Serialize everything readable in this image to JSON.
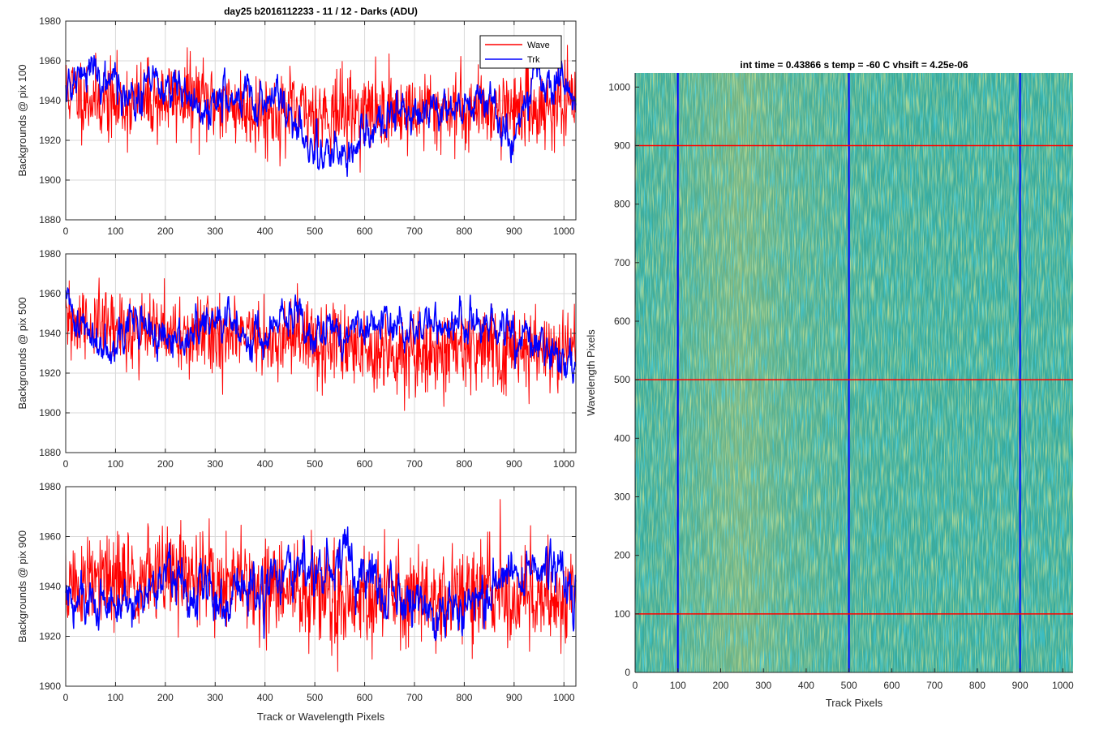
{
  "figure": {
    "left_title": "day25 b2016112233 - 11 / 12 - Darks (ADU)",
    "right_title": "int time = 0.43866 s    temp = -60 C    vhsift = 4.25e-06"
  },
  "legend": {
    "wave_label": "Wave",
    "trk_label": "Trk",
    "placement": "top-right"
  },
  "colors": {
    "wave": "#ff0000",
    "trk": "#0000ff",
    "image_base": "#2fa9a0",
    "image_warm": "#c8c060"
  },
  "chart_data": [
    {
      "type": "line",
      "ylabel": "Backgrounds @ pix 100",
      "xlabel": "",
      "xlim": [
        0,
        1024
      ],
      "ylim": [
        1880,
        1980
      ],
      "xticks": [
        0,
        100,
        200,
        300,
        400,
        500,
        600,
        700,
        800,
        900,
        1000
      ],
      "yticks": [
        1880,
        1900,
        1920,
        1940,
        1960,
        1980
      ],
      "grid": true,
      "series": [
        {
          "name": "Wave",
          "mean": 1937,
          "sd": 10,
          "seed": 11,
          "anchors": [
            [
              0,
              1945
            ],
            [
              100,
              1938
            ],
            [
              250,
              1942
            ],
            [
              400,
              1934
            ],
            [
              600,
              1934
            ],
            [
              800,
              1936
            ],
            [
              1024,
              1937
            ]
          ]
        },
        {
          "name": "Trk",
          "mean": 1940,
          "sd": 4,
          "seed": 21,
          "anchors": [
            [
              0,
              1945
            ],
            [
              60,
              1958
            ],
            [
              120,
              1942
            ],
            [
              200,
              1948
            ],
            [
              260,
              1938
            ],
            [
              330,
              1940
            ],
            [
              430,
              1944
            ],
            [
              480,
              1918
            ],
            [
              560,
              1914
            ],
            [
              650,
              1930
            ],
            [
              700,
              1933
            ],
            [
              800,
              1940
            ],
            [
              870,
              1938
            ],
            [
              890,
              1916
            ],
            [
              950,
              1955
            ],
            [
              1000,
              1940
            ],
            [
              1024,
              1945
            ]
          ]
        }
      ]
    },
    {
      "type": "line",
      "ylabel": "Backgrounds @ pix 500",
      "xlabel": "",
      "xlim": [
        0,
        1024
      ],
      "ylim": [
        1880,
        1980
      ],
      "xticks": [
        0,
        100,
        200,
        300,
        400,
        500,
        600,
        700,
        800,
        900,
        1000
      ],
      "yticks": [
        1880,
        1900,
        1920,
        1940,
        1960,
        1980
      ],
      "grid": true,
      "series": [
        {
          "name": "Wave",
          "mean": 1937,
          "sd": 10,
          "seed": 31,
          "anchors": [
            [
              0,
              1945
            ],
            [
              200,
              1940
            ],
            [
              400,
              1937
            ],
            [
              700,
              1931
            ],
            [
              1024,
              1933
            ]
          ]
        },
        {
          "name": "Trk",
          "mean": 1940,
          "sd": 4,
          "seed": 41,
          "anchors": [
            [
              0,
              1955
            ],
            [
              60,
              1935
            ],
            [
              150,
              1947
            ],
            [
              200,
              1933
            ],
            [
              300,
              1946
            ],
            [
              400,
              1938
            ],
            [
              450,
              1948
            ],
            [
              550,
              1940
            ],
            [
              700,
              1944
            ],
            [
              800,
              1945
            ],
            [
              880,
              1940
            ],
            [
              1024,
              1925
            ]
          ]
        }
      ]
    },
    {
      "type": "line",
      "ylabel": "Backgrounds @ pix 900",
      "xlabel": "Track or Wavelength Pixels",
      "xlim": [
        0,
        1024
      ],
      "ylim": [
        1900,
        1980
      ],
      "xticks": [
        0,
        100,
        200,
        300,
        400,
        500,
        600,
        700,
        800,
        900,
        1000
      ],
      "yticks": [
        1900,
        1920,
        1940,
        1960,
        1980
      ],
      "grid": true,
      "series": [
        {
          "name": "Wave",
          "mean": 1937,
          "sd": 10,
          "seed": 51,
          "anchors": [
            [
              0,
              1940
            ],
            [
              230,
              1945
            ],
            [
              500,
              1936
            ],
            [
              1024,
              1937
            ]
          ]
        },
        {
          "name": "Trk",
          "mean": 1938,
          "sd": 4,
          "seed": 61,
          "anchors": [
            [
              0,
              1935
            ],
            [
              100,
              1932
            ],
            [
              220,
              1945
            ],
            [
              300,
              1935
            ],
            [
              430,
              1942
            ],
            [
              560,
              1948
            ],
            [
              650,
              1940
            ],
            [
              750,
              1930
            ],
            [
              900,
              1942
            ],
            [
              960,
              1950
            ],
            [
              1024,
              1935
            ]
          ]
        }
      ]
    },
    {
      "type": "heatmap",
      "xlabel": "Track Pixels",
      "ylabel": "Wavelength Pixels",
      "xlim": [
        0,
        1024
      ],
      "ylim": [
        0,
        1024
      ],
      "xticks": [
        0,
        100,
        200,
        300,
        400,
        500,
        600,
        700,
        800,
        900,
        1000
      ],
      "yticks": [
        0,
        100,
        200,
        300,
        400,
        500,
        600,
        700,
        800,
        900,
        1000
      ],
      "vertical_lines": [
        100,
        500,
        900
      ],
      "horizontal_lines": [
        100,
        500,
        900
      ]
    }
  ]
}
